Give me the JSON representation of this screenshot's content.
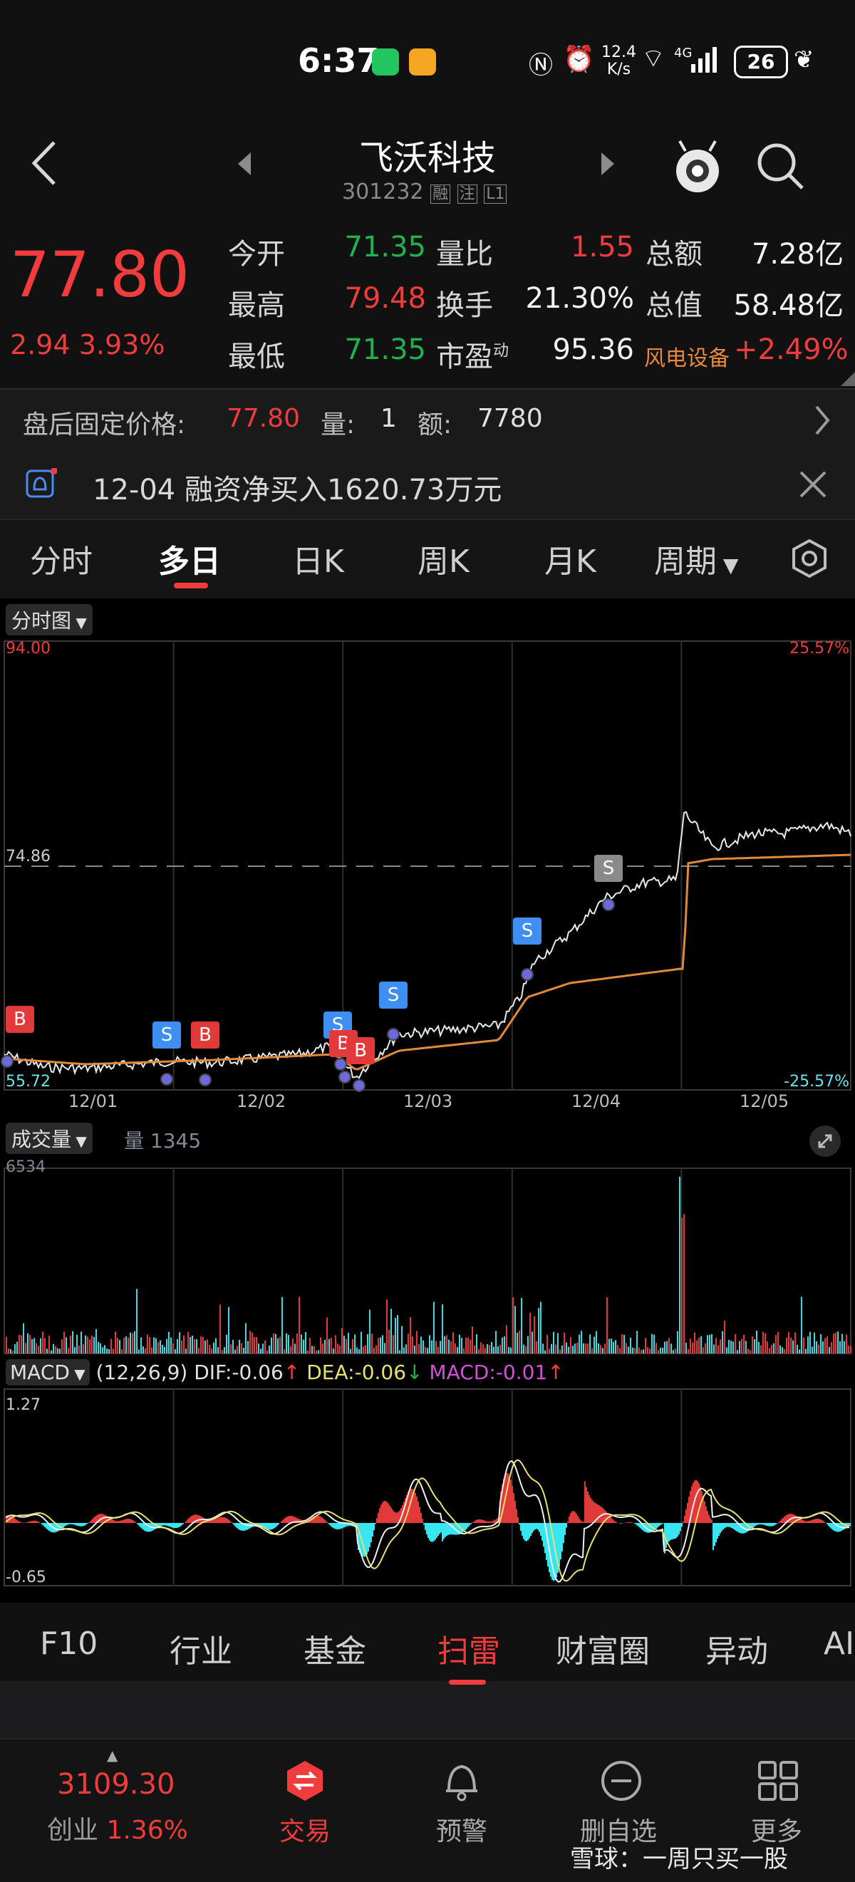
{
  "status_bar": {
    "time": "6:37",
    "net_speed_top": "12.4",
    "net_speed_bottom": "K/s",
    "signal_type": "4G",
    "battery": "26"
  },
  "header": {
    "name": "飞沃科技",
    "code": "301232",
    "tags": [
      "融",
      "注",
      "L1"
    ]
  },
  "quote": {
    "price": "77.80",
    "change": "2.94",
    "change_pct": "3.93%",
    "rows": [
      {
        "l1": "今开",
        "v1": "71.35",
        "l2": "量比",
        "v2": "1.55",
        "l3": "总额",
        "v3": "7.28亿"
      },
      {
        "l1": "最高",
        "v1": "79.48",
        "l2": "换手",
        "v2": "21.30%",
        "l3": "总值",
        "v3": "58.48亿"
      },
      {
        "l1": "最低",
        "v1": "71.35",
        "l2": "市盈",
        "l2_sup": "动",
        "v2": "95.36",
        "l3": "风电设备",
        "v3": "+2.49%"
      }
    ]
  },
  "after_hours": {
    "label": "盘后固定价格:",
    "price": "77.80",
    "vol_label": "量:",
    "vol": "1",
    "amt_label": "额:",
    "amt": "7780"
  },
  "notice": {
    "text": "12-04 融资净买入1620.73万元"
  },
  "tabs": [
    "分时",
    "多日",
    "日K",
    "周K",
    "月K",
    "周期"
  ],
  "active_tab": "多日",
  "price_chart": {
    "selector": "分时图",
    "y_max": "94.00",
    "y_min": "55.72",
    "y_ref": "74.86",
    "pct_max": "25.57%",
    "pct_min": "-25.57%",
    "dates": [
      "12/01",
      "12/02",
      "12/03",
      "12/04",
      "12/05"
    ]
  },
  "trade_markers": [
    "B",
    "S",
    "B",
    "S",
    "B",
    "B",
    "S",
    "S",
    "S"
  ],
  "volume_chart": {
    "selector": "成交量",
    "vol_label": "量 1345",
    "y_max": "6534"
  },
  "macd_chart": {
    "selector": "MACD",
    "params": "(12,26,9)",
    "dif": "DIF:-0.06",
    "dea": "DEA:-0.06",
    "macd": "MACD:-0.01",
    "y_max": "1.27",
    "y_min": "-0.65"
  },
  "bottom_tabs": [
    "F10",
    "行业",
    "基金",
    "扫雷",
    "财富圈",
    "异动",
    "AI"
  ],
  "active_bottom_tab": "扫雷",
  "footer": {
    "index_value": "3109.30",
    "index_name": "创业",
    "index_pct": "1.36%",
    "trade": "交易",
    "alert": "预警",
    "remove_fav": "删自选",
    "more": "更多",
    "watermark": "雪球：一周只买一股"
  },
  "colors": {
    "up": "#f03c3c",
    "down": "#22b14c",
    "accent": "#f03c3c",
    "macd_neg": "#37e6f0",
    "avg_line": "#e08a3c"
  }
}
